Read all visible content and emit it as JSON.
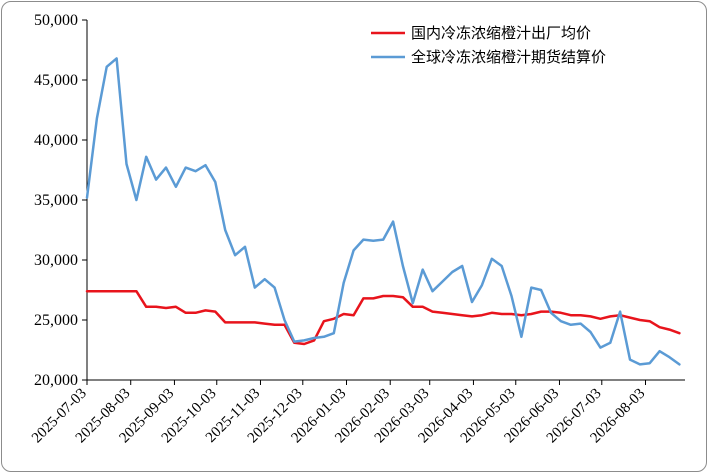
{
  "chart_data": {
    "type": "line",
    "title": "",
    "xlabel": "",
    "ylabel": "",
    "ylim": [
      20000,
      50000
    ],
    "y_ticks": [
      "20,000",
      "25,000",
      "30,000",
      "35,000",
      "40,000",
      "45,000",
      "50,000"
    ],
    "x_ticks": [
      "2025-07-03",
      "2025-08-03",
      "2025-09-03",
      "2025-10-03",
      "2025-11-03",
      "2025-12-03",
      "2026-01-03",
      "2026-02-03",
      "2026-03-03",
      "2026-04-03",
      "2026-05-03",
      "2026-06-03",
      "2026-07-03",
      "2026-08-03"
    ],
    "x_start": "2025-07-03",
    "x_end": "2026-08-31",
    "legend_position": "top-right",
    "grid": false,
    "series": [
      {
        "name": "国内冷冻浓缩橙汁出厂均价",
        "color": "#e8141c",
        "points": [
          [
            "2025-07-03",
            27400
          ],
          [
            "2025-07-10",
            27400
          ],
          [
            "2025-07-17",
            27400
          ],
          [
            "2025-07-24",
            27400
          ],
          [
            "2025-07-31",
            27400
          ],
          [
            "2025-08-07",
            27400
          ],
          [
            "2025-08-14",
            26100
          ],
          [
            "2025-08-21",
            26100
          ],
          [
            "2025-08-28",
            26000
          ],
          [
            "2025-09-04",
            26100
          ],
          [
            "2025-09-11",
            25600
          ],
          [
            "2025-09-18",
            25600
          ],
          [
            "2025-09-25",
            25800
          ],
          [
            "2025-10-02",
            25700
          ],
          [
            "2025-10-09",
            24800
          ],
          [
            "2025-10-16",
            24800
          ],
          [
            "2025-10-23",
            24800
          ],
          [
            "2025-10-30",
            24800
          ],
          [
            "2025-11-06",
            24700
          ],
          [
            "2025-11-13",
            24600
          ],
          [
            "2025-11-20",
            24600
          ],
          [
            "2025-11-27",
            23100
          ],
          [
            "2025-12-04",
            23000
          ],
          [
            "2025-12-11",
            23300
          ],
          [
            "2025-12-18",
            24900
          ],
          [
            "2025-12-25",
            25100
          ],
          [
            "2026-01-01",
            25500
          ],
          [
            "2026-01-08",
            25400
          ],
          [
            "2026-01-15",
            26800
          ],
          [
            "2026-01-22",
            26800
          ],
          [
            "2026-01-29",
            27000
          ],
          [
            "2026-02-05",
            27000
          ],
          [
            "2026-02-12",
            26900
          ],
          [
            "2026-02-19",
            26100
          ],
          [
            "2026-02-26",
            26100
          ],
          [
            "2026-03-05",
            25700
          ],
          [
            "2026-03-12",
            25600
          ],
          [
            "2026-03-19",
            25500
          ],
          [
            "2026-03-26",
            25400
          ],
          [
            "2026-04-02",
            25300
          ],
          [
            "2026-04-09",
            25400
          ],
          [
            "2026-04-16",
            25600
          ],
          [
            "2026-04-23",
            25500
          ],
          [
            "2026-04-30",
            25500
          ],
          [
            "2026-05-07",
            25400
          ],
          [
            "2026-05-14",
            25500
          ],
          [
            "2026-05-21",
            25700
          ],
          [
            "2026-05-28",
            25700
          ],
          [
            "2026-06-04",
            25600
          ],
          [
            "2026-06-11",
            25400
          ],
          [
            "2026-06-18",
            25400
          ],
          [
            "2026-06-25",
            25300
          ],
          [
            "2026-07-02",
            25100
          ],
          [
            "2026-07-09",
            25300
          ],
          [
            "2026-07-16",
            25400
          ],
          [
            "2026-07-23",
            25200
          ],
          [
            "2026-07-30",
            25000
          ],
          [
            "2026-08-06",
            24900
          ],
          [
            "2026-08-13",
            24400
          ],
          [
            "2026-08-20",
            24200
          ],
          [
            "2026-08-27",
            23900
          ]
        ]
      },
      {
        "name": "全球冷冻浓缩橙汁期货结算价",
        "color": "#5b9bd5",
        "points": [
          [
            "2025-07-03",
            35200
          ],
          [
            "2025-07-10",
            41800
          ],
          [
            "2025-07-17",
            46100
          ],
          [
            "2025-07-24",
            46800
          ],
          [
            "2025-07-31",
            38000
          ],
          [
            "2025-08-07",
            35000
          ],
          [
            "2025-08-14",
            38600
          ],
          [
            "2025-08-21",
            36700
          ],
          [
            "2025-08-28",
            37700
          ],
          [
            "2025-09-04",
            36100
          ],
          [
            "2025-09-11",
            37700
          ],
          [
            "2025-09-18",
            37400
          ],
          [
            "2025-09-25",
            37900
          ],
          [
            "2025-10-02",
            36500
          ],
          [
            "2025-10-09",
            32500
          ],
          [
            "2025-10-16",
            30400
          ],
          [
            "2025-10-23",
            31100
          ],
          [
            "2025-10-30",
            27700
          ],
          [
            "2025-11-06",
            28400
          ],
          [
            "2025-11-13",
            27700
          ],
          [
            "2025-11-20",
            25000
          ],
          [
            "2025-11-27",
            23200
          ],
          [
            "2025-12-04",
            23300
          ],
          [
            "2025-12-11",
            23500
          ],
          [
            "2025-12-18",
            23600
          ],
          [
            "2025-12-25",
            23900
          ],
          [
            "2026-01-01",
            28100
          ],
          [
            "2026-01-08",
            30800
          ],
          [
            "2026-01-15",
            31700
          ],
          [
            "2026-01-22",
            31600
          ],
          [
            "2026-01-29",
            31700
          ],
          [
            "2026-02-05",
            33200
          ],
          [
            "2026-02-12",
            29500
          ],
          [
            "2026-02-19",
            26400
          ],
          [
            "2026-02-26",
            29200
          ],
          [
            "2026-03-05",
            27400
          ],
          [
            "2026-03-12",
            28200
          ],
          [
            "2026-03-19",
            29000
          ],
          [
            "2026-03-26",
            29500
          ],
          [
            "2026-04-02",
            26500
          ],
          [
            "2026-04-09",
            27900
          ],
          [
            "2026-04-16",
            30100
          ],
          [
            "2026-04-23",
            29500
          ],
          [
            "2026-04-30",
            27000
          ],
          [
            "2026-05-07",
            23600
          ],
          [
            "2026-05-14",
            27700
          ],
          [
            "2026-05-21",
            27500
          ],
          [
            "2026-05-28",
            25600
          ],
          [
            "2026-06-04",
            24900
          ],
          [
            "2026-06-11",
            24600
          ],
          [
            "2026-06-18",
            24700
          ],
          [
            "2026-06-25",
            24000
          ],
          [
            "2026-07-02",
            22700
          ],
          [
            "2026-07-09",
            23100
          ],
          [
            "2026-07-16",
            25700
          ],
          [
            "2026-07-23",
            21700
          ],
          [
            "2026-07-30",
            21300
          ],
          [
            "2026-08-06",
            21400
          ],
          [
            "2026-08-13",
            22400
          ],
          [
            "2026-08-20",
            21900
          ],
          [
            "2026-08-27",
            21300
          ]
        ]
      }
    ]
  }
}
